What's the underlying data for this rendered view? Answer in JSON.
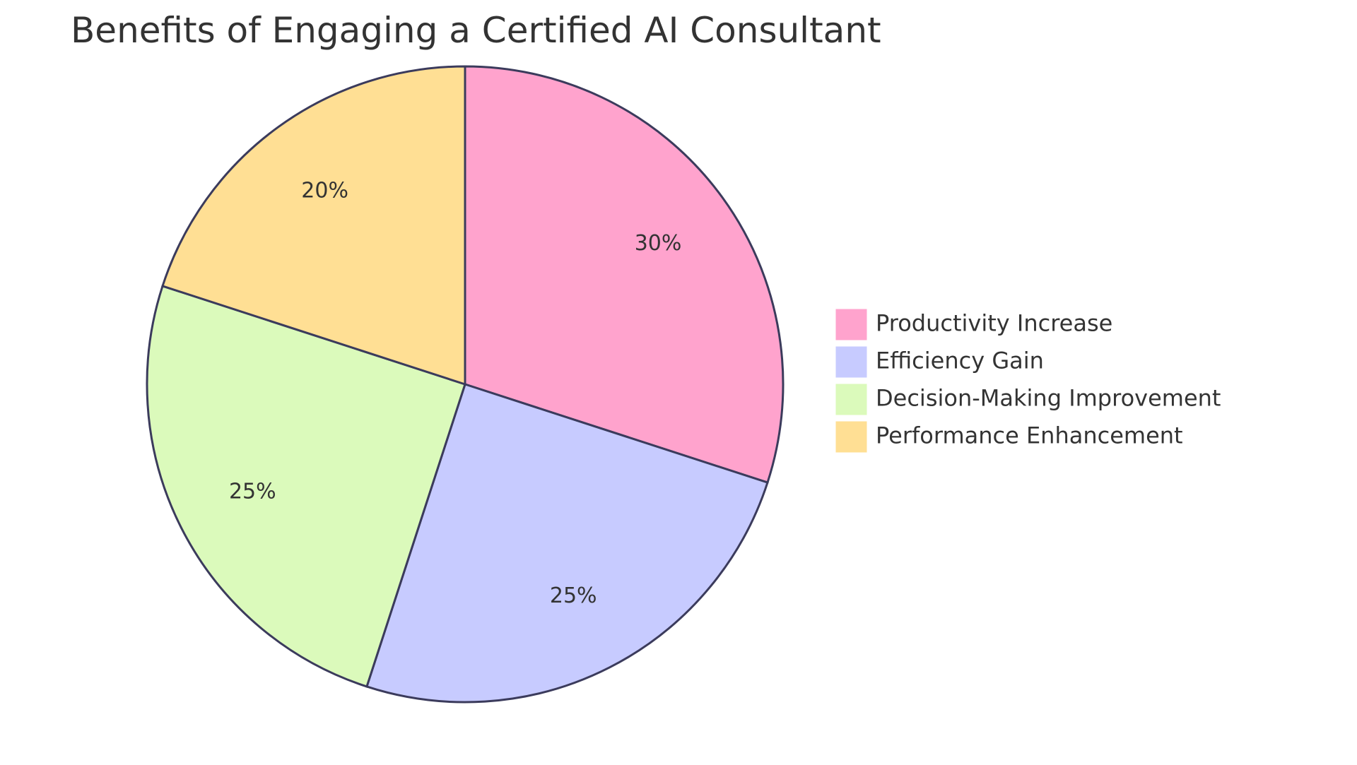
{
  "chart_data": {
    "type": "pie",
    "title": "Benefits of Engaging a Certified AI Consultant",
    "legend_position": "right",
    "stroke_color": "#3b3b5c",
    "slices": [
      {
        "label": "Productivity Increase",
        "value": 30,
        "display": "30%",
        "color": "#ffa3cd"
      },
      {
        "label": "Efficiency Gain",
        "value": 25,
        "display": "25%",
        "color": "#c7cbff"
      },
      {
        "label": "Decision-Making Improvement",
        "value": 25,
        "display": "25%",
        "color": "#dbfabb"
      },
      {
        "label": "Performance Enhancement",
        "value": 20,
        "display": "20%",
        "color": "#ffdf94"
      }
    ]
  }
}
